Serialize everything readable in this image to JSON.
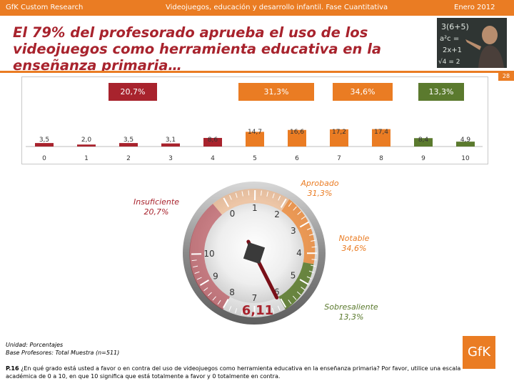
{
  "header": {
    "company": "GfK Custom Research",
    "subtitle": "Videojuegos, educación y desarrollo infantil. Fase Cuantitativa",
    "date": "Enero 2012"
  },
  "title": "El 79% del profesorado aprueba el uso de los videojuegos como herramienta educativa en la enseñanza primaria…",
  "page_number": "28",
  "chips": {
    "insuficiente": "20,7%",
    "aprobado": "31,3%",
    "notable": "34,6%",
    "sobresaliente": "13,3%"
  },
  "chart_data": {
    "type": "bar",
    "categories": [
      "0",
      "1",
      "2",
      "3",
      "4",
      "5",
      "6",
      "7",
      "8",
      "9",
      "10"
    ],
    "values": [
      3.5,
      2.0,
      3.5,
      3.1,
      8.6,
      14.7,
      16.6,
      17.2,
      17.4,
      8.4,
      4.9
    ],
    "value_labels": [
      "3,5",
      "2,0",
      "3,5",
      "3,1",
      "8,6",
      "14,7",
      "16,6",
      "17,2",
      "17,4",
      "8,4",
      "4,9"
    ],
    "ylim": [
      0,
      20
    ],
    "colors": [
      "#a8232d",
      "#a8232d",
      "#a8232d",
      "#a8232d",
      "#a8232d",
      "#ea7c23",
      "#ea7c23",
      "#ea7c23",
      "#ea7c23",
      "#5b7a2e",
      "#5b7a2e"
    ]
  },
  "gauge": {
    "value": 6.11,
    "value_label": "6,11",
    "ticks": [
      "0",
      "1",
      "2",
      "3",
      "4",
      "5",
      "6",
      "7",
      "8",
      "9",
      "10"
    ],
    "labels": {
      "insuficiente": "Insuficiente",
      "insuficiente_pct": "20,7%",
      "aprobado": "Aprobado",
      "aprobado_pct": "31,3%",
      "notable": "Notable",
      "notable_pct": "34,6%",
      "sobresaliente": "Sobresaliente",
      "sobresaliente_pct": "13,3%"
    }
  },
  "footnotes": {
    "line1": "Unidad: Porcentajes",
    "line2": "Base Profesores: Total Muestra (n=511)"
  },
  "question": {
    "label": "P.16",
    "text": "¿En qué grado está usted a favor o en contra del uso de videojuegos como herramienta educativa en la enseñanza primaria? Por favor, utilice una escala académica de 0 a 10, en que 10 significa que está totalmente a favor y 0 totalmente en contra."
  },
  "logo": "GfK",
  "colors": {
    "accent": "#ea7c23",
    "insuficiente": "#a8232d",
    "aprobado": "#ea7c23",
    "notable": "#ea7c23",
    "sobresaliente": "#5b7a2e"
  }
}
